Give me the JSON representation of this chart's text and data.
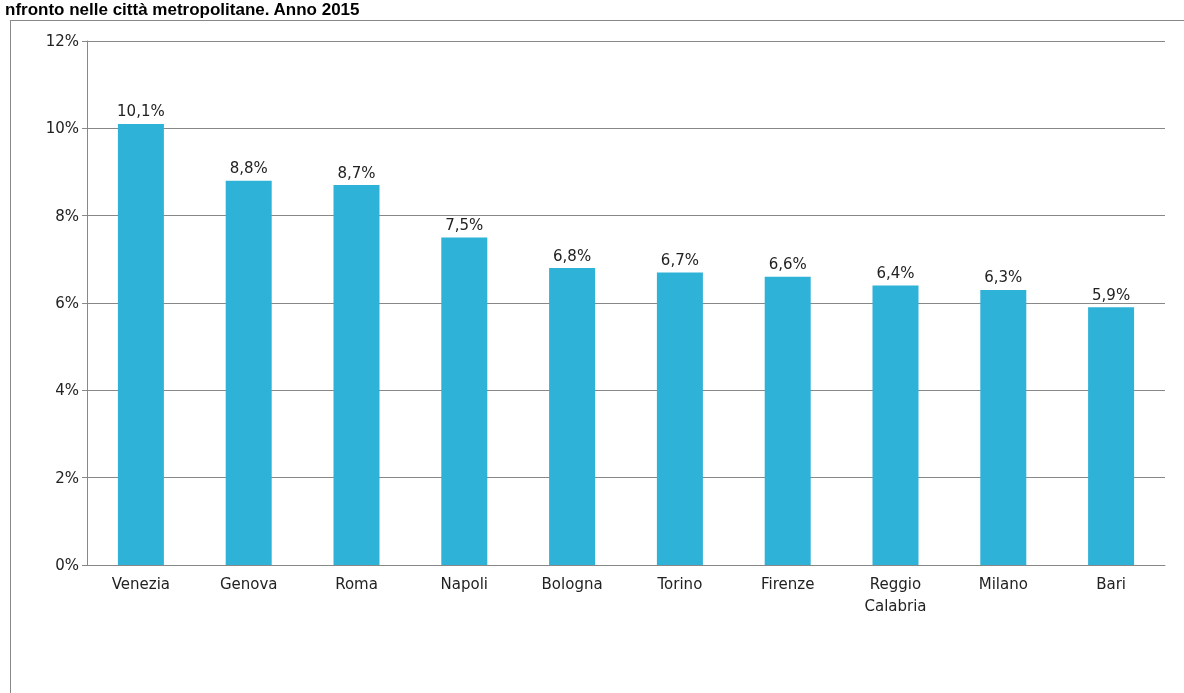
{
  "chart_data": {
    "type": "bar",
    "title": "nfronto nelle città metropolitane. Anno 2015",
    "categories": [
      "Venezia",
      "Genova",
      "Roma",
      "Napoli",
      "Bologna",
      "Torino",
      "Firenze",
      "Reggio\nCalabria",
      "Milano",
      "Bari"
    ],
    "values": [
      10.1,
      8.8,
      8.7,
      7.5,
      6.8,
      6.7,
      6.6,
      6.4,
      6.3,
      5.9
    ],
    "value_labels": [
      "10,1%",
      "8,8%",
      "8,7%",
      "7,5%",
      "6,8%",
      "6,7%",
      "6,6%",
      "6,4%",
      "6,3%",
      "5,9%"
    ],
    "color": "#2fb2d8",
    "ylim": [
      0,
      12
    ],
    "yticks": [
      {
        "value": 0,
        "label": "0%"
      },
      {
        "value": 2,
        "label": "2%"
      },
      {
        "value": 4,
        "label": "4%"
      },
      {
        "value": 6,
        "label": "6%"
      },
      {
        "value": 8,
        "label": "8%"
      },
      {
        "value": 10,
        "label": "10%"
      },
      {
        "value": 12,
        "label": "12%"
      }
    ],
    "grid": "y"
  }
}
